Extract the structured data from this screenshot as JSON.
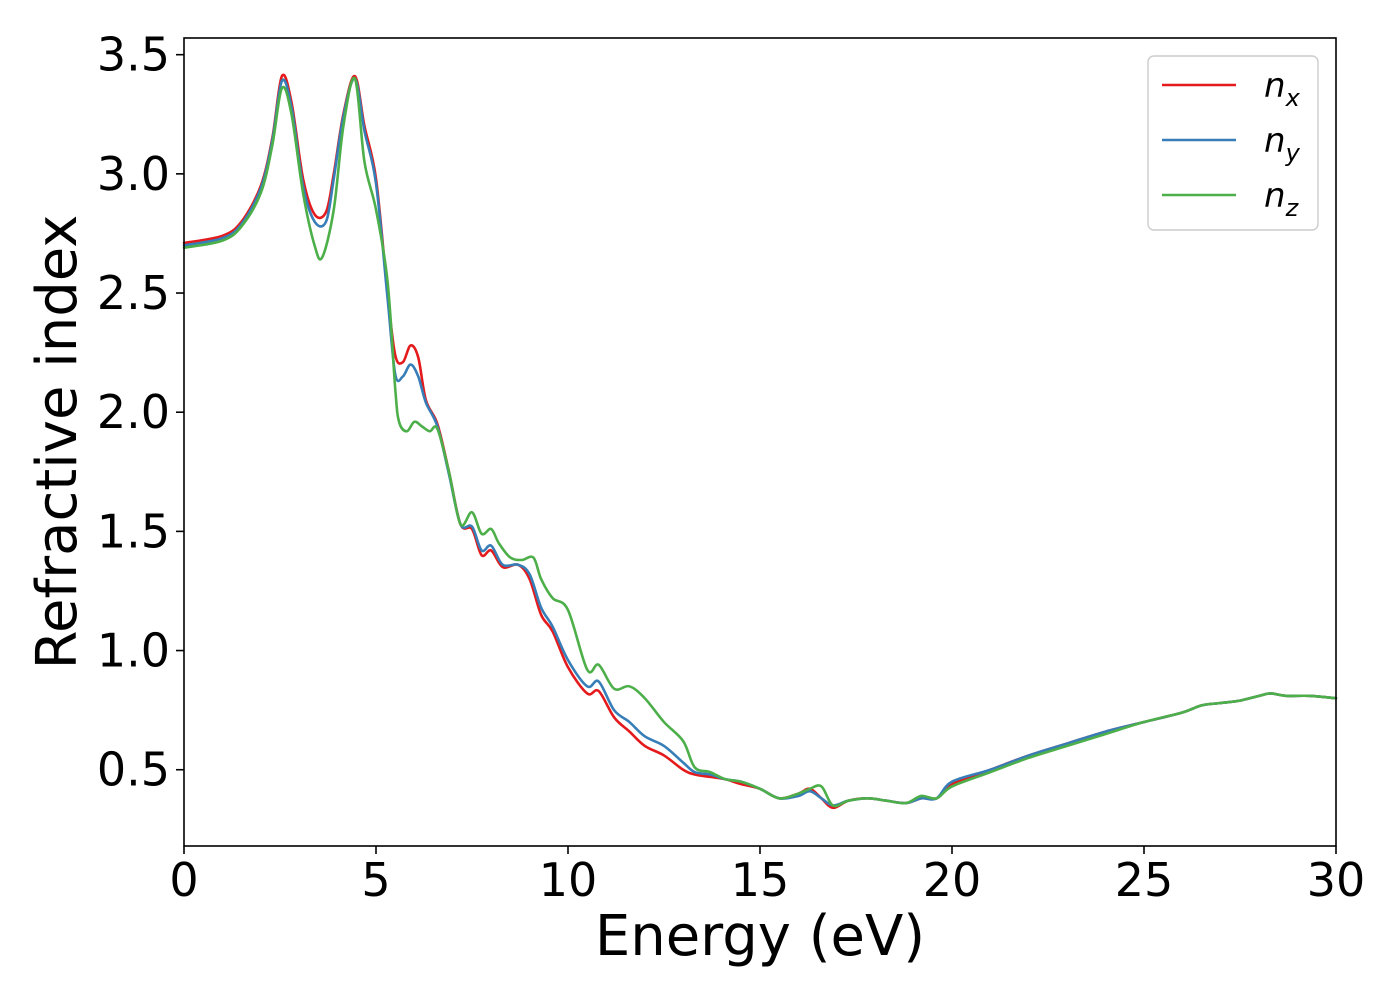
{
  "chart_data": {
    "type": "line",
    "title": "",
    "xlabel": "Energy (eV)",
    "ylabel": "Refractive index",
    "xlim": [
      0,
      30
    ],
    "ylim": [
      0.18,
      3.57
    ],
    "xticks": [
      0,
      5,
      10,
      15,
      20,
      25,
      30
    ],
    "xtick_labels": [
      "0",
      "5",
      "10",
      "15",
      "20",
      "25",
      "30"
    ],
    "yticks": [
      0.5,
      1.0,
      1.5,
      2.0,
      2.5,
      3.0,
      3.5
    ],
    "ytick_labels": [
      "0.5",
      "1.0",
      "1.5",
      "2.0",
      "2.5",
      "3.0",
      "3.5"
    ],
    "grid": false,
    "legend_position": "top-right",
    "series": [
      {
        "name": "n_x",
        "legend_base": "n",
        "legend_sub": "x",
        "color": "#e41a1c",
        "x": [
          0,
          1,
          1.5,
          2,
          2.3,
          2.55,
          2.8,
          3.1,
          3.4,
          3.7,
          3.9,
          4.15,
          4.45,
          4.7,
          5.0,
          5.3,
          5.5,
          5.7,
          5.9,
          6.1,
          6.3,
          6.6,
          6.9,
          7.2,
          7.5,
          7.75,
          8.0,
          8.3,
          8.7,
          9.0,
          9.3,
          9.6,
          10.0,
          10.5,
          10.8,
          11.2,
          11.6,
          12.0,
          12.5,
          13.0,
          13.3,
          13.7,
          14.1,
          14.5,
          15.0,
          15.5,
          16.0,
          16.3,
          16.6,
          16.9,
          17.3,
          17.8,
          18.3,
          18.8,
          19.2,
          19.6,
          20.0,
          21.0,
          22.0,
          23.0,
          24.0,
          25.0,
          26.0,
          26.5,
          27.0,
          27.5,
          28.0,
          28.3,
          28.7,
          29.3,
          30.0
        ],
        "y": [
          2.71,
          2.74,
          2.8,
          2.95,
          3.15,
          3.41,
          3.3,
          2.98,
          2.83,
          2.84,
          3.0,
          3.25,
          3.41,
          3.2,
          2.98,
          2.5,
          2.24,
          2.21,
          2.28,
          2.23,
          2.05,
          1.95,
          1.75,
          1.53,
          1.51,
          1.4,
          1.42,
          1.35,
          1.36,
          1.3,
          1.15,
          1.08,
          0.93,
          0.82,
          0.83,
          0.72,
          0.66,
          0.6,
          0.56,
          0.5,
          0.48,
          0.47,
          0.46,
          0.44,
          0.42,
          0.38,
          0.4,
          0.42,
          0.38,
          0.34,
          0.37,
          0.38,
          0.37,
          0.36,
          0.38,
          0.38,
          0.44,
          0.5,
          0.56,
          0.61,
          0.66,
          0.7,
          0.74,
          0.77,
          0.78,
          0.79,
          0.81,
          0.82,
          0.81,
          0.81,
          0.8
        ]
      },
      {
        "name": "n_y",
        "legend_base": "n",
        "legend_sub": "y",
        "color": "#377eb8",
        "x": [
          0,
          1,
          1.5,
          2,
          2.3,
          2.55,
          2.8,
          3.1,
          3.4,
          3.7,
          3.9,
          4.15,
          4.45,
          4.7,
          5.0,
          5.3,
          5.5,
          5.7,
          5.9,
          6.1,
          6.3,
          6.6,
          6.9,
          7.2,
          7.5,
          7.75,
          8.0,
          8.3,
          8.7,
          9.0,
          9.3,
          9.6,
          10.0,
          10.5,
          10.8,
          11.2,
          11.6,
          12.0,
          12.5,
          13.0,
          13.3,
          13.7,
          14.1,
          14.5,
          15.0,
          15.5,
          16.0,
          16.3,
          16.6,
          16.9,
          17.3,
          17.8,
          18.3,
          18.8,
          19.2,
          19.6,
          20.0,
          21.0,
          22.0,
          23.0,
          24.0,
          25.0,
          26.0,
          26.5,
          27.0,
          27.5,
          28.0,
          28.3,
          28.7,
          29.3,
          30.0
        ],
        "y": [
          2.7,
          2.73,
          2.79,
          2.94,
          3.14,
          3.39,
          3.28,
          2.95,
          2.8,
          2.8,
          2.98,
          3.24,
          3.4,
          3.18,
          2.96,
          2.48,
          2.16,
          2.15,
          2.2,
          2.15,
          2.04,
          1.94,
          1.74,
          1.53,
          1.52,
          1.42,
          1.44,
          1.36,
          1.36,
          1.32,
          1.18,
          1.1,
          0.96,
          0.85,
          0.87,
          0.75,
          0.7,
          0.64,
          0.6,
          0.53,
          0.49,
          0.48,
          0.46,
          0.45,
          0.42,
          0.38,
          0.39,
          0.41,
          0.38,
          0.35,
          0.37,
          0.38,
          0.37,
          0.36,
          0.38,
          0.38,
          0.45,
          0.5,
          0.56,
          0.61,
          0.66,
          0.7,
          0.74,
          0.77,
          0.78,
          0.79,
          0.81,
          0.82,
          0.81,
          0.81,
          0.8
        ]
      },
      {
        "name": "n_z",
        "legend_base": "n",
        "legend_sub": "z",
        "color": "#4daf4a",
        "x": [
          0,
          1,
          1.5,
          2,
          2.3,
          2.55,
          2.8,
          3.1,
          3.4,
          3.6,
          3.9,
          4.15,
          4.45,
          4.7,
          5.0,
          5.3,
          5.5,
          5.6,
          5.8,
          6.0,
          6.2,
          6.4,
          6.6,
          6.9,
          7.2,
          7.5,
          7.75,
          8.0,
          8.2,
          8.5,
          8.8,
          9.1,
          9.3,
          9.6,
          10.0,
          10.5,
          10.8,
          11.2,
          11.6,
          12.0,
          12.5,
          13.0,
          13.3,
          13.7,
          14.1,
          14.5,
          15.0,
          15.5,
          16.0,
          16.3,
          16.6,
          16.9,
          17.3,
          17.8,
          18.3,
          18.8,
          19.2,
          19.6,
          20.0,
          21.0,
          22.0,
          23.0,
          24.0,
          25.0,
          26.0,
          26.5,
          27.0,
          27.5,
          28.0,
          28.3,
          28.7,
          29.3,
          30.0
        ],
        "y": [
          2.69,
          2.72,
          2.78,
          2.92,
          3.12,
          3.36,
          3.25,
          2.92,
          2.7,
          2.65,
          2.85,
          3.2,
          3.4,
          3.05,
          2.85,
          2.55,
          2.1,
          1.96,
          1.92,
          1.96,
          1.94,
          1.92,
          1.93,
          1.75,
          1.53,
          1.58,
          1.49,
          1.51,
          1.45,
          1.39,
          1.38,
          1.39,
          1.3,
          1.22,
          1.17,
          0.92,
          0.94,
          0.84,
          0.85,
          0.8,
          0.7,
          0.62,
          0.51,
          0.49,
          0.46,
          0.45,
          0.42,
          0.38,
          0.4,
          0.42,
          0.43,
          0.35,
          0.37,
          0.38,
          0.37,
          0.36,
          0.39,
          0.38,
          0.43,
          0.49,
          0.55,
          0.6,
          0.65,
          0.7,
          0.74,
          0.77,
          0.78,
          0.79,
          0.81,
          0.82,
          0.81,
          0.81,
          0.8
        ]
      }
    ]
  }
}
